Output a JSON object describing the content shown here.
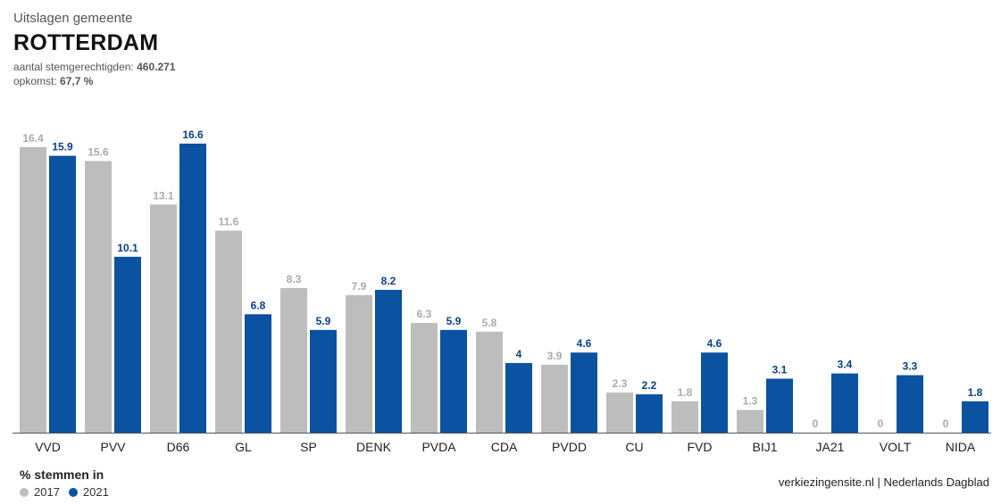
{
  "header": {
    "subtitle": "Uitslagen gemeente",
    "title": "ROTTERDAM",
    "voters_label": "aantal stemgerechtigden:",
    "voters_value": "460.271",
    "turnout_label": "opkomst:",
    "turnout_value": "67,7 %"
  },
  "legend": {
    "title": "% stemmen in",
    "items": [
      {
        "label": "2017",
        "color": "#bdbdbd"
      },
      {
        "label": "2021",
        "color": "#0b52a0"
      }
    ]
  },
  "source": "verkiezingensite.nl | Nederlands Dagblad",
  "chart_data": {
    "type": "bar",
    "categories": [
      "VVD",
      "PVV",
      "D66",
      "GL",
      "SP",
      "DENK",
      "PVDA",
      "CDA",
      "PVDD",
      "CU",
      "FVD",
      "BIJ1",
      "JA21",
      "VOLT",
      "NIDA"
    ],
    "series": [
      {
        "name": "2017",
        "color": "#bdbdbd",
        "label_color": "#aaaaaa",
        "values": [
          16.4,
          15.6,
          13.1,
          11.6,
          8.3,
          7.9,
          6.3,
          5.8,
          3.9,
          2.3,
          1.8,
          1.3,
          0,
          0,
          0
        ]
      },
      {
        "name": "2021",
        "color": "#0b52a0",
        "label_color": "#0b3f86",
        "values": [
          15.9,
          10.1,
          16.6,
          6.8,
          5.9,
          8.2,
          5.9,
          4,
          4.6,
          2.2,
          4.6,
          3.1,
          3.4,
          3.3,
          1.8
        ]
      }
    ],
    "ylim": [
      0,
      16.6
    ],
    "grid": false,
    "legend_position": "bottom-left"
  }
}
